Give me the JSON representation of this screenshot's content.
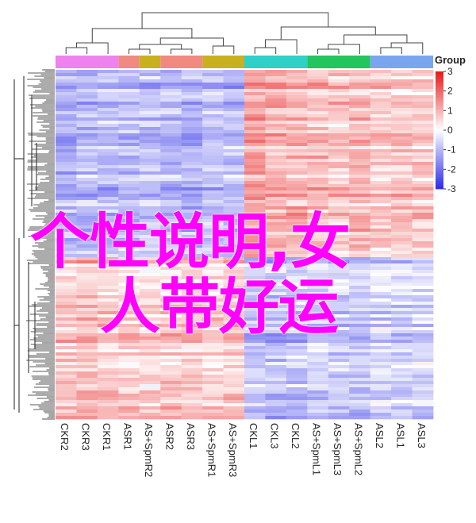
{
  "chart_data": {
    "type": "heatmap",
    "columns": [
      "CKR2",
      "CKR3",
      "CKR1",
      "ASR1",
      "AS+SpmR2",
      "ASR2",
      "ASR3",
      "AS+SpmR1",
      "AS+SpmR3",
      "CKL1",
      "CKL3",
      "CKL2",
      "AS+SpmL1",
      "AS+SpmL3",
      "AS+SpmL2",
      "ASL2",
      "ASL1",
      "ASL3"
    ],
    "column_groups": [
      {
        "columns": [
          "CKR2",
          "CKR3",
          "CKR1"
        ],
        "color": "#ee82ee"
      },
      {
        "columns": [
          "ASR1"
        ],
        "color": "#f08a80"
      },
      {
        "columns": [
          "AS+SpmR2"
        ],
        "color": "#c8b020"
      },
      {
        "columns": [
          "ASR2",
          "ASR3"
        ],
        "color": "#f08a80"
      },
      {
        "columns": [
          "AS+SpmR1",
          "AS+SpmR3"
        ],
        "color": "#c8b020"
      },
      {
        "columns": [
          "CKL1",
          "CKL3",
          "CKL2"
        ],
        "color": "#2ed0c8"
      },
      {
        "columns": [
          "AS+SpmL1",
          "AS+SpmL3",
          "AS+SpmL2"
        ],
        "color": "#22c55e"
      },
      {
        "columns": [
          "ASL2",
          "ASL1",
          "ASL3"
        ],
        "color": "#7aa6f0"
      }
    ],
    "legend_title": "Group",
    "color_scale": {
      "min": -3,
      "max": 3,
      "ticks": [
        "3",
        "2",
        "1",
        "0",
        "-1",
        "-2",
        "-3"
      ],
      "low_color": "#2a2ae8",
      "mid_color": "#ffffff",
      "high_color": "#e81818"
    },
    "row_clusters": [
      {
        "fraction": 0.54,
        "values": [
          -1.1,
          -1.0,
          -1.0,
          -1.0,
          -0.9,
          -1.0,
          -1.1,
          -0.9,
          -1.0,
          1.3,
          1.1,
          1.0,
          0.9,
          0.8,
          1.0,
          0.7,
          0.8,
          0.8
        ]
      },
      {
        "fraction": 0.46,
        "values": [
          0.8,
          0.9,
          0.8,
          0.7,
          0.7,
          0.8,
          0.7,
          0.7,
          0.8,
          -0.9,
          -1.0,
          -0.9,
          -0.8,
          -0.8,
          -0.9,
          -0.6,
          -0.7,
          -0.7
        ]
      }
    ]
  },
  "overlay": {
    "line1": "个性说明,女",
    "line2": "人带好运"
  }
}
